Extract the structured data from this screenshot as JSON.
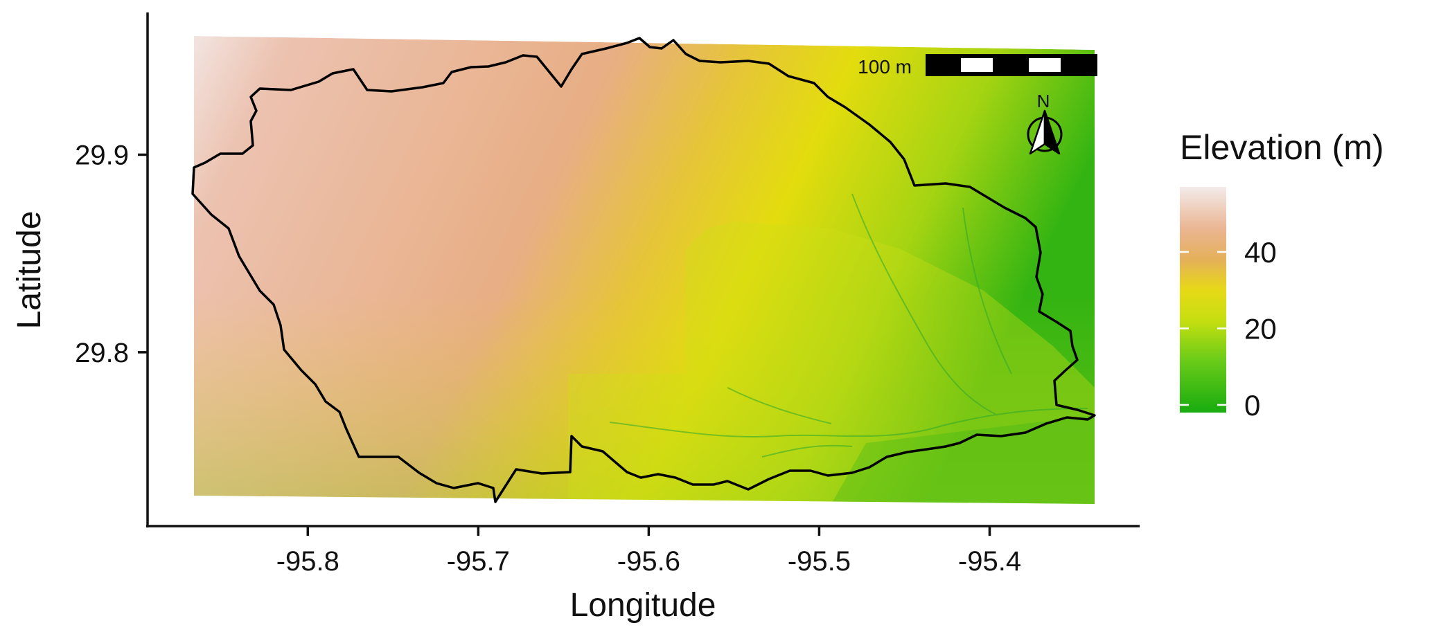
{
  "map": {
    "xlabel": "Longitude",
    "ylabel": "Latitude",
    "x_ticks": [
      -95.8,
      -95.7,
      -95.6,
      -95.5,
      -95.4
    ],
    "x_tick_labels": [
      "-95.8",
      "-95.7",
      "-95.6",
      "-95.5",
      "-95.4"
    ],
    "y_ticks": [
      29.8,
      29.9
    ],
    "y_tick_labels": [
      "29.8",
      "29.9"
    ],
    "xlim": [
      -95.894,
      -95.312
    ],
    "ylim": [
      29.712,
      29.972
    ],
    "scale_bar_label": "100 m",
    "north_arrow_label": "N",
    "colors": {
      "axis": "#111111",
      "boundary": "#000000",
      "elev_high": "#f2e4e0",
      "elev_upper": "#e9ae86",
      "elev_mid": "#e4dc10",
      "elev_low": "#1faf14"
    }
  },
  "legend": {
    "title": "Elevation (m)",
    "tick_values": [
      40,
      20,
      0
    ],
    "tick_labels": [
      "40",
      "20",
      "0"
    ],
    "range": [
      -2,
      57
    ],
    "stops": [
      {
        "value": 57,
        "color": "#f3ebea"
      },
      {
        "value": 46,
        "color": "#eab592"
      },
      {
        "value": 38,
        "color": "#e5b05a"
      },
      {
        "value": 30,
        "color": "#e6d916"
      },
      {
        "value": 22,
        "color": "#c5df10"
      },
      {
        "value": 12,
        "color": "#6dcc18"
      },
      {
        "value": -2,
        "color": "#18ac10"
      }
    ]
  }
}
